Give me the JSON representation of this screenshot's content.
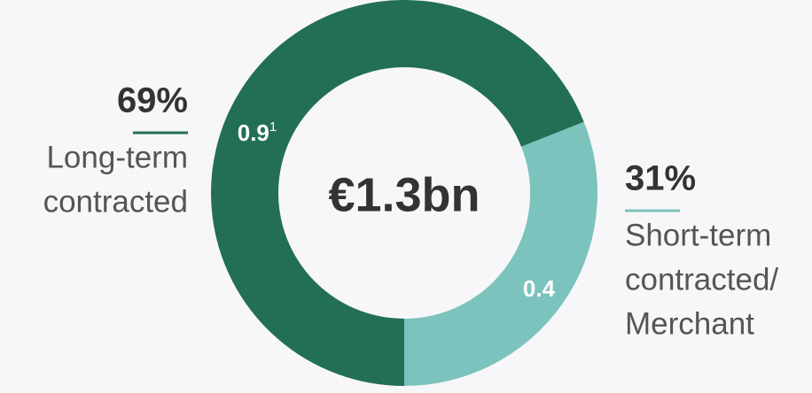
{
  "chart_data": {
    "type": "donut",
    "center_label": "€1.3bn",
    "categories": [
      [
        "Long-term",
        "contracted"
      ],
      [
        "Short-term",
        "contracted/",
        "Merchant"
      ]
    ],
    "values": [
      0.9,
      0.4
    ],
    "shares": [
      69,
      31
    ],
    "share_labels": [
      "69%",
      "31%"
    ],
    "footnote": "1",
    "colors": [
      "#236f55",
      "#7cc3bd"
    ],
    "start_angle": 180
  }
}
